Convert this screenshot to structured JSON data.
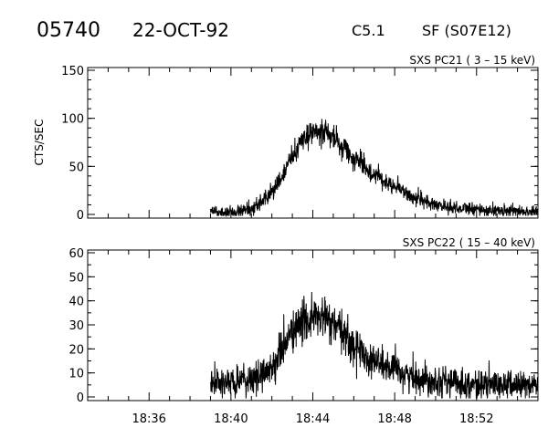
{
  "header": {
    "event_id": "05740",
    "date": "22-OCT-92",
    "flare_class": "C5.1",
    "location": "SF (S07E12)"
  },
  "chart_data": [
    {
      "type": "line",
      "title": "SXS PC21  (  3 – 15 keV)",
      "ylabel": "CTS/SEC",
      "xlabel": "",
      "x_range": [
        "18:33",
        "18:55"
      ],
      "ylim": [
        0,
        150
      ],
      "yticks": [
        0,
        50,
        100,
        150
      ],
      "x_ticks": [],
      "data_start": "18:39",
      "series": [
        {
          "x": [
            "18:39",
            "18:40",
            "18:41",
            "18:42",
            "18:42:30",
            "18:43",
            "18:43:30",
            "18:44",
            "18:44:30",
            "18:45",
            "18:45:30",
            "18:46",
            "18:47",
            "18:48",
            "18:49",
            "18:50",
            "18:51",
            "18:52",
            "18:53",
            "18:55"
          ],
          "values": [
            2,
            3,
            6,
            22,
            40,
            60,
            78,
            85,
            86,
            80,
            70,
            58,
            42,
            30,
            17,
            10,
            7,
            5,
            4,
            3
          ],
          "noise": 6
        }
      ]
    },
    {
      "type": "line",
      "title": "SXS PC22  ( 15 – 40 keV)",
      "ylabel": "",
      "xlabel": "",
      "x_range": [
        "18:33",
        "18:55"
      ],
      "ylim": [
        0,
        60
      ],
      "yticks": [
        0,
        10,
        20,
        30,
        40,
        50,
        60
      ],
      "x_ticks": [
        "18:36",
        "18:40",
        "18:44",
        "18:48",
        "18:52"
      ],
      "data_start": "18:39",
      "series": [
        {
          "x": [
            "18:39",
            "18:40",
            "18:41",
            "18:42",
            "18:42:30",
            "18:43",
            "18:43:30",
            "18:44",
            "18:44:30",
            "18:45",
            "18:45:30",
            "18:46",
            "18:47",
            "18:48",
            "18:49",
            "18:50",
            "18:51",
            "18:52",
            "18:53",
            "18:55"
          ],
          "values": [
            6,
            6,
            7,
            12,
            20,
            27,
            31,
            33,
            33,
            30,
            26,
            21,
            15,
            11,
            8,
            7,
            6,
            5,
            5,
            5
          ],
          "noise": 4.5
        }
      ]
    }
  ]
}
